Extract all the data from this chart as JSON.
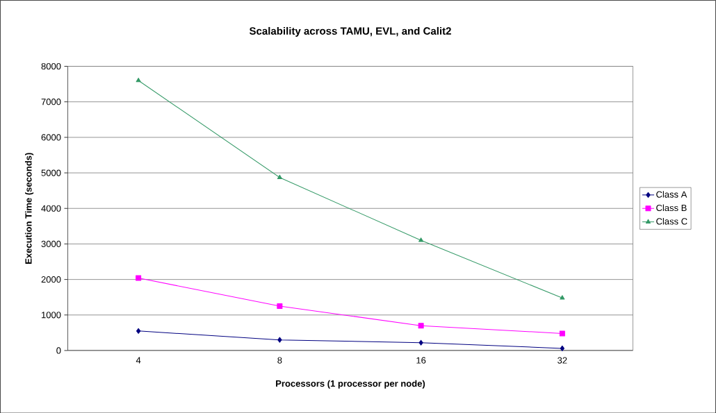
{
  "chart_data": {
    "type": "line",
    "title": "Scalability across TAMU, EVL, and Calit2",
    "xlabel": "Processors (1 processor per node)",
    "ylabel": "Execution Time (seconds)",
    "categories": [
      "4",
      "8",
      "16",
      "32"
    ],
    "series": [
      {
        "name": "Class A",
        "color": "#000080",
        "marker": "diamond",
        "values": [
          550,
          300,
          220,
          60
        ]
      },
      {
        "name": "Class B",
        "color": "#ff00ff",
        "marker": "square",
        "values": [
          2040,
          1250,
          700,
          480
        ]
      },
      {
        "name": "Class C",
        "color": "#339966",
        "marker": "triangle",
        "values": [
          7600,
          4870,
          3100,
          1480
        ]
      }
    ],
    "ylim": [
      0,
      8000
    ],
    "yticks": [
      0,
      1000,
      2000,
      3000,
      4000,
      5000,
      6000,
      7000,
      8000
    ],
    "grid": "y",
    "legend": "right",
    "line_style": "solid"
  }
}
